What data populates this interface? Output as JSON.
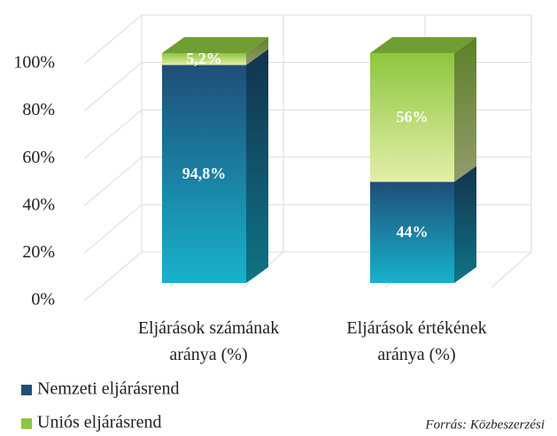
{
  "chart_data": {
    "type": "bar3d_stacked",
    "categories": [
      "Eljárások számának aránya (%)",
      "Eljárások értékének aránya (%)"
    ],
    "series": [
      {
        "name": "Nemzeti eljárásrend",
        "color": "#1f4e79",
        "values": [
          94.8,
          44
        ],
        "value_labels": [
          "94,8%",
          "44%"
        ]
      },
      {
        "name": "Uniós eljárásrend",
        "color": "#8dc63f",
        "values": [
          5.2,
          56
        ],
        "value_labels": [
          "5,2%",
          "56%"
        ]
      }
    ],
    "ylim": [
      0,
      100
    ],
    "yticks": [
      {
        "value": 0,
        "label": "0%"
      },
      {
        "value": 20,
        "label": "20%"
      },
      {
        "value": 40,
        "label": "40%"
      },
      {
        "value": 60,
        "label": "60%"
      },
      {
        "value": 80,
        "label": "80%"
      },
      {
        "value": 100,
        "label": "100%"
      }
    ],
    "grid": true,
    "legend": "bottom-left",
    "source": "Forrás: Közbeszerzési"
  }
}
